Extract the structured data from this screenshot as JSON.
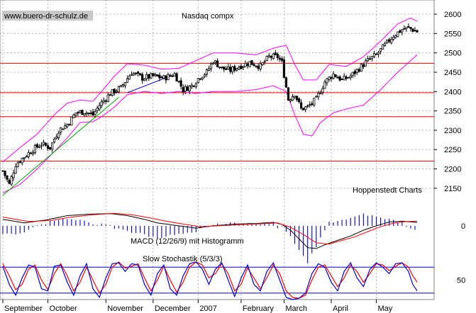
{
  "chart_data": [
    {
      "type": "line",
      "panel": "price",
      "title": "Nasdaq compx",
      "watermark": "www.buero-dr-schulz.de",
      "source_note": "Hoppenstedt Charts",
      "series_style": "daily OHLC bars with Bollinger Bands",
      "y_ticks": [
        2150,
        2200,
        2250,
        2300,
        2350,
        2400,
        2450,
        2500,
        2550,
        2600
      ],
      "ylim": [
        2115,
        2622
      ],
      "ohlc_anchor_closes": [
        [
          0,
          2195
        ],
        [
          3,
          2160
        ],
        [
          6,
          2212
        ],
        [
          10,
          2232
        ],
        [
          14,
          2250
        ],
        [
          18,
          2265
        ],
        [
          22,
          2255
        ],
        [
          26,
          2300
        ],
        [
          30,
          2315
        ],
        [
          34,
          2345
        ],
        [
          38,
          2348
        ],
        [
          42,
          2340
        ],
        [
          45,
          2365
        ],
        [
          50,
          2395
        ],
        [
          55,
          2410
        ],
        [
          60,
          2450
        ],
        [
          65,
          2435
        ],
        [
          70,
          2440
        ],
        [
          75,
          2435
        ],
        [
          80,
          2445
        ],
        [
          84,
          2405
        ],
        [
          88,
          2415
        ],
        [
          92,
          2440
        ],
        [
          95,
          2450
        ],
        [
          98,
          2480
        ],
        [
          102,
          2460
        ],
        [
          106,
          2455
        ],
        [
          110,
          2465
        ],
        [
          115,
          2475
        ],
        [
          120,
          2465
        ],
        [
          124,
          2490
        ],
        [
          128,
          2490
        ],
        [
          130,
          2475
        ],
        [
          133,
          2380
        ],
        [
          136,
          2395
        ],
        [
          139,
          2355
        ],
        [
          142,
          2360
        ],
        [
          146,
          2380
        ],
        [
          150,
          2425
        ],
        [
          154,
          2445
        ],
        [
          158,
          2430
        ],
        [
          162,
          2440
        ],
        [
          166,
          2460
        ],
        [
          170,
          2480
        ],
        [
          174,
          2495
        ],
        [
          178,
          2520
        ],
        [
          182,
          2545
        ],
        [
          186,
          2560
        ],
        [
          189,
          2565
        ],
        [
          193,
          2555
        ]
      ],
      "bollinger_upper_anchors": [
        [
          0,
          2218
        ],
        [
          8,
          2255
        ],
        [
          16,
          2290
        ],
        [
          24,
          2340
        ],
        [
          30,
          2370
        ],
        [
          36,
          2378
        ],
        [
          42,
          2375
        ],
        [
          46,
          2400
        ],
        [
          52,
          2440
        ],
        [
          58,
          2472
        ],
        [
          66,
          2468
        ],
        [
          74,
          2458
        ],
        [
          82,
          2460
        ],
        [
          90,
          2480
        ],
        [
          98,
          2500
        ],
        [
          108,
          2500
        ],
        [
          118,
          2495
        ],
        [
          126,
          2512
        ],
        [
          132,
          2520
        ],
        [
          136,
          2470
        ],
        [
          140,
          2430
        ],
        [
          146,
          2430
        ],
        [
          152,
          2470
        ],
        [
          160,
          2465
        ],
        [
          168,
          2490
        ],
        [
          176,
          2530
        ],
        [
          184,
          2575
        ],
        [
          190,
          2590
        ],
        [
          193,
          2582
        ]
      ],
      "bollinger_lower_anchors": [
        [
          0,
          2138
        ],
        [
          8,
          2160
        ],
        [
          16,
          2200
        ],
        [
          24,
          2245
        ],
        [
          30,
          2280
        ],
        [
          36,
          2320
        ],
        [
          42,
          2322
        ],
        [
          46,
          2335
        ],
        [
          52,
          2360
        ],
        [
          58,
          2392
        ],
        [
          66,
          2400
        ],
        [
          74,
          2395
        ],
        [
          82,
          2400
        ],
        [
          90,
          2395
        ],
        [
          98,
          2400
        ],
        [
          108,
          2400
        ],
        [
          118,
          2405
        ],
        [
          126,
          2415
        ],
        [
          132,
          2400
        ],
        [
          136,
          2340
        ],
        [
          140,
          2290
        ],
        [
          144,
          2285
        ],
        [
          148,
          2320
        ],
        [
          154,
          2345
        ],
        [
          160,
          2355
        ],
        [
          168,
          2365
        ],
        [
          176,
          2405
        ],
        [
          184,
          2450
        ],
        [
          190,
          2480
        ],
        [
          193,
          2495
        ]
      ],
      "horizontal_support_resistance_lines": [
        2220,
        2335,
        2397,
        2473
      ],
      "trend_lines": [
        {
          "name": "uptrend-green",
          "color": "#00aa00",
          "from": [
            0,
            2132
          ],
          "to": [
            54,
            2385
          ]
        },
        {
          "name": "uptrend-blue",
          "color": "#0000cc",
          "from": [
            58,
            2397
          ],
          "to": [
            78,
            2440
          ]
        }
      ]
    },
    {
      "type": "line",
      "panel": "macd",
      "label": "MACD (12/26/9) mit Histogramm",
      "y_ticks": [
        0
      ],
      "ylim": [
        -10,
        8
      ],
      "macd_anchors": [
        [
          0,
          2.2
        ],
        [
          10,
          1.0
        ],
        [
          20,
          2.0
        ],
        [
          30,
          3.5
        ],
        [
          40,
          4.0
        ],
        [
          50,
          4.2
        ],
        [
          58,
          3.5
        ],
        [
          66,
          2.2
        ],
        [
          72,
          1.0
        ],
        [
          80,
          0.2
        ],
        [
          90,
          -0.8
        ],
        [
          98,
          0.0
        ],
        [
          108,
          0.6
        ],
        [
          118,
          0.8
        ],
        [
          126,
          1.2
        ],
        [
          130,
          0.5
        ],
        [
          134,
          -1.5
        ],
        [
          138,
          -4.5
        ],
        [
          142,
          -7.5
        ],
        [
          146,
          -7.8
        ],
        [
          150,
          -6.5
        ],
        [
          156,
          -5.0
        ],
        [
          162,
          -3.5
        ],
        [
          168,
          -1.5
        ],
        [
          174,
          0.0
        ],
        [
          180,
          1.3
        ],
        [
          186,
          1.6
        ],
        [
          193,
          1.2
        ]
      ],
      "signal_anchors": [
        [
          0,
          3.0
        ],
        [
          12,
          1.5
        ],
        [
          22,
          1.8
        ],
        [
          32,
          3.0
        ],
        [
          42,
          3.8
        ],
        [
          52,
          4.3
        ],
        [
          60,
          3.8
        ],
        [
          68,
          2.8
        ],
        [
          76,
          1.6
        ],
        [
          84,
          0.6
        ],
        [
          92,
          -0.3
        ],
        [
          100,
          0.0
        ],
        [
          110,
          0.4
        ],
        [
          120,
          0.7
        ],
        [
          128,
          1.0
        ],
        [
          134,
          -0.5
        ],
        [
          140,
          -3.0
        ],
        [
          146,
          -5.8
        ],
        [
          152,
          -6.3
        ],
        [
          158,
          -5.0
        ],
        [
          164,
          -3.8
        ],
        [
          170,
          -2.0
        ],
        [
          176,
          -0.3
        ],
        [
          182,
          0.9
        ],
        [
          188,
          1.5
        ],
        [
          193,
          1.6
        ]
      ]
    },
    {
      "type": "line",
      "panel": "stochastic",
      "label": "Slow Stochastik (5/3/3)",
      "y_ticks": [
        50
      ],
      "ylim": [
        5,
        105
      ],
      "reference_lines": [
        20,
        80
      ],
      "k_anchors": [
        [
          0,
          82
        ],
        [
          3,
          40
        ],
        [
          6,
          15
        ],
        [
          9,
          55
        ],
        [
          12,
          85
        ],
        [
          15,
          80
        ],
        [
          18,
          30
        ],
        [
          21,
          25
        ],
        [
          24,
          82
        ],
        [
          27,
          85
        ],
        [
          30,
          45
        ],
        [
          33,
          15
        ],
        [
          36,
          60
        ],
        [
          39,
          88
        ],
        [
          42,
          30
        ],
        [
          45,
          10
        ],
        [
          48,
          55
        ],
        [
          51,
          88
        ],
        [
          54,
          90
        ],
        [
          57,
          70
        ],
        [
          60,
          88
        ],
        [
          63,
          85
        ],
        [
          66,
          40
        ],
        [
          69,
          15
        ],
        [
          72,
          65
        ],
        [
          75,
          85
        ],
        [
          78,
          30
        ],
        [
          81,
          15
        ],
        [
          84,
          60
        ],
        [
          87,
          88
        ],
        [
          90,
          92
        ],
        [
          93,
          75
        ],
        [
          96,
          40
        ],
        [
          99,
          75
        ],
        [
          102,
          90
        ],
        [
          105,
          50
        ],
        [
          108,
          12
        ],
        [
          111,
          55
        ],
        [
          114,
          85
        ],
        [
          117,
          40
        ],
        [
          120,
          25
        ],
        [
          123,
          70
        ],
        [
          126,
          90
        ],
        [
          129,
          50
        ],
        [
          132,
          10
        ],
        [
          135,
          5
        ],
        [
          138,
          8
        ],
        [
          141,
          20
        ],
        [
          144,
          65
        ],
        [
          147,
          88
        ],
        [
          150,
          80
        ],
        [
          153,
          45
        ],
        [
          156,
          25
        ],
        [
          159,
          70
        ],
        [
          162,
          90
        ],
        [
          165,
          55
        ],
        [
          168,
          35
        ],
        [
          171,
          75
        ],
        [
          174,
          90
        ],
        [
          177,
          80
        ],
        [
          180,
          65
        ],
        [
          183,
          88
        ],
        [
          186,
          90
        ],
        [
          189,
          70
        ],
        [
          191,
          40
        ],
        [
          193,
          25
        ]
      ],
      "d_anchors": [
        [
          0,
          88
        ],
        [
          3,
          60
        ],
        [
          6,
          28
        ],
        [
          9,
          40
        ],
        [
          12,
          75
        ],
        [
          15,
          85
        ],
        [
          18,
          50
        ],
        [
          21,
          28
        ],
        [
          24,
          65
        ],
        [
          27,
          88
        ],
        [
          30,
          60
        ],
        [
          33,
          25
        ],
        [
          36,
          45
        ],
        [
          39,
          80
        ],
        [
          42,
          50
        ],
        [
          45,
          20
        ],
        [
          48,
          40
        ],
        [
          51,
          80
        ],
        [
          54,
          92
        ],
        [
          57,
          78
        ],
        [
          60,
          82
        ],
        [
          63,
          88
        ],
        [
          66,
          55
        ],
        [
          69,
          25
        ],
        [
          72,
          50
        ],
        [
          75,
          82
        ],
        [
          78,
          50
        ],
        [
          81,
          22
        ],
        [
          84,
          45
        ],
        [
          87,
          80
        ],
        [
          90,
          92
        ],
        [
          93,
          85
        ],
        [
          96,
          55
        ],
        [
          99,
          65
        ],
        [
          102,
          88
        ],
        [
          105,
          65
        ],
        [
          108,
          25
        ],
        [
          111,
          40
        ],
        [
          114,
          78
        ],
        [
          117,
          55
        ],
        [
          120,
          30
        ],
        [
          123,
          55
        ],
        [
          126,
          85
        ],
        [
          129,
          65
        ],
        [
          132,
          25
        ],
        [
          135,
          10
        ],
        [
          138,
          8
        ],
        [
          141,
          15
        ],
        [
          144,
          50
        ],
        [
          147,
          80
        ],
        [
          150,
          85
        ],
        [
          153,
          60
        ],
        [
          156,
          35
        ],
        [
          159,
          55
        ],
        [
          162,
          85
        ],
        [
          165,
          70
        ],
        [
          168,
          45
        ],
        [
          171,
          65
        ],
        [
          174,
          88
        ],
        [
          177,
          85
        ],
        [
          180,
          72
        ],
        [
          183,
          82
        ],
        [
          186,
          90
        ],
        [
          189,
          80
        ],
        [
          191,
          60
        ],
        [
          193,
          45
        ]
      ]
    }
  ],
  "x_axis": {
    "months": [
      "September",
      "October",
      "November",
      "December",
      "2007",
      "February",
      "March",
      "April",
      "May"
    ],
    "month_start_index": [
      0,
      21,
      48,
      70,
      91,
      111,
      131,
      153,
      174
    ],
    "total_bars": 194,
    "grid": true
  },
  "colors": {
    "price_bars": "#000000",
    "bollinger": "#ff00ff",
    "hline": "#ff0000",
    "macd_line": "#000000",
    "signal_line": "#ff0000",
    "histogram": "#0000cc",
    "stoch_k": "#0000cc",
    "stoch_d": "#ff0000",
    "stoch_ref": "#0000cc",
    "grid": "#a0a0a0",
    "watermark_bg": "#c8c8c8"
  }
}
